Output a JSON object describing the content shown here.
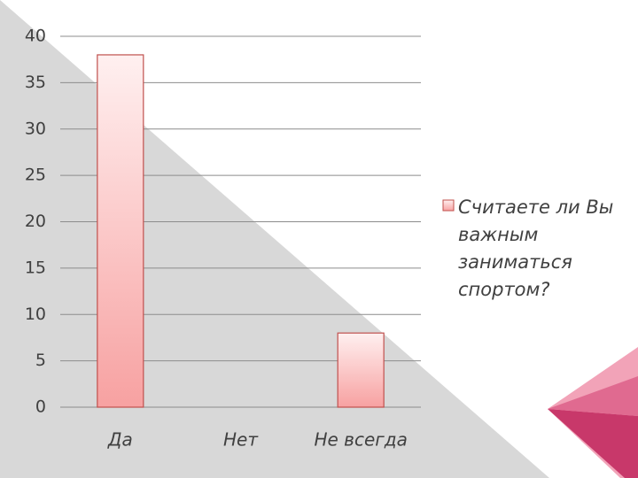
{
  "chart_data": {
    "type": "bar",
    "categories": [
      "Да",
      "Нет",
      "Не всегда"
    ],
    "series": [
      {
        "name": "Считаете ли Вы важным заниматься спортом?",
        "color": "#f7a1a1",
        "values": [
          38,
          0,
          8
        ]
      }
    ],
    "ylim": [
      0,
      40
    ],
    "yticks": [
      0,
      5,
      10,
      15,
      20,
      25,
      30,
      35,
      40
    ],
    "grid": true,
    "legend": "right"
  }
}
